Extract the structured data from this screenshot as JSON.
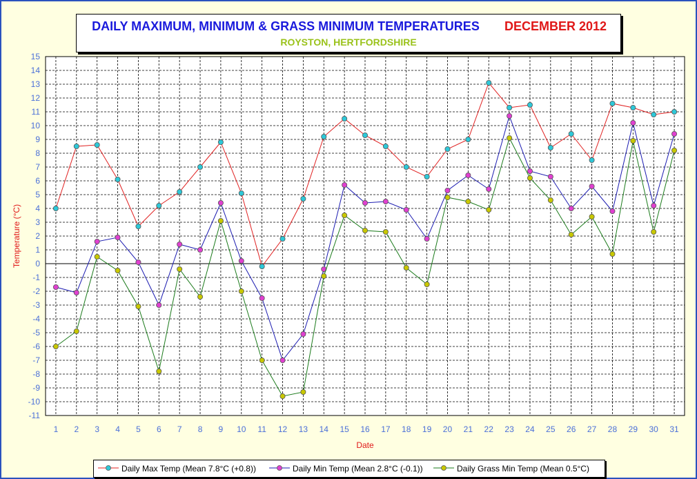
{
  "title": {
    "main": "DAILY MAXIMUM, MINIMUM & GRASS MINIMUM TEMPERATURES",
    "date": "DECEMBER 2012",
    "subtitle": "ROYSTON, HERTFORDSHIRE"
  },
  "colors": {
    "background": "#ffffe1",
    "frame": "#2a52be",
    "title_main": "#1a1adc",
    "title_date": "#e01818",
    "subtitle": "#9ac21a",
    "tick_labels": "#4a6fd8",
    "axis_titles": "#e01818"
  },
  "chart_data": {
    "type": "line",
    "xlabel": "Date",
    "ylabel": "Temperature (°C)",
    "x": [
      1,
      2,
      3,
      4,
      5,
      6,
      7,
      8,
      9,
      10,
      11,
      12,
      13,
      14,
      15,
      16,
      17,
      18,
      19,
      20,
      21,
      22,
      23,
      24,
      25,
      26,
      27,
      28,
      29,
      30,
      31
    ],
    "xlim": [
      0.5,
      31.5
    ],
    "ylim": [
      -11,
      15
    ],
    "yticks": [
      -11,
      -10,
      -9,
      -8,
      -7,
      -6,
      -5,
      -4,
      -3,
      -2,
      -1,
      0,
      1,
      2,
      3,
      4,
      5,
      6,
      7,
      8,
      9,
      10,
      11,
      12,
      13,
      14,
      15
    ],
    "grid": true,
    "legend_position": "bottom",
    "series": [
      {
        "name": "Daily Max Temp (Mean 7.8°C (+0.8))",
        "line_color": "#e02020",
        "marker_color": "#2ec8d8",
        "values": [
          4.0,
          8.5,
          8.6,
          6.1,
          2.7,
          4.2,
          5.2,
          7.0,
          8.8,
          5.1,
          -0.2,
          1.8,
          4.7,
          9.2,
          10.5,
          9.3,
          8.5,
          7.0,
          6.3,
          8.3,
          9.0,
          13.1,
          11.3,
          11.5,
          8.4,
          9.4,
          7.5,
          11.6,
          11.3,
          10.8,
          11.0
        ]
      },
      {
        "name": "Daily Min Temp (Mean 2.8°C (-0.1))",
        "line_color": "#1a1ab0",
        "marker_color": "#e040d0",
        "values": [
          -1.7,
          -2.1,
          1.6,
          1.9,
          0.1,
          -3.0,
          1.4,
          1.0,
          4.4,
          0.2,
          -2.5,
          -7.0,
          -5.1,
          -0.4,
          5.7,
          4.4,
          4.5,
          3.9,
          1.8,
          5.3,
          6.4,
          5.4,
          10.7,
          6.7,
          6.3,
          4.0,
          5.6,
          3.8,
          10.2,
          4.2,
          9.4
        ]
      },
      {
        "name": "Daily Grass Min Temp (Mean 0.5°C)",
        "line_color": "#1a7a1a",
        "marker_color": "#c8c800",
        "values": [
          -6.0,
          -4.9,
          0.5,
          -0.5,
          -3.1,
          -7.8,
          -0.4,
          -2.4,
          3.1,
          -2.0,
          -7.0,
          -9.6,
          -9.3,
          -0.9,
          3.5,
          2.4,
          2.3,
          -0.3,
          -1.5,
          4.8,
          4.5,
          3.9,
          9.1,
          6.2,
          4.6,
          2.1,
          3.4,
          0.7,
          8.9,
          2.3,
          8.2
        ]
      }
    ]
  }
}
